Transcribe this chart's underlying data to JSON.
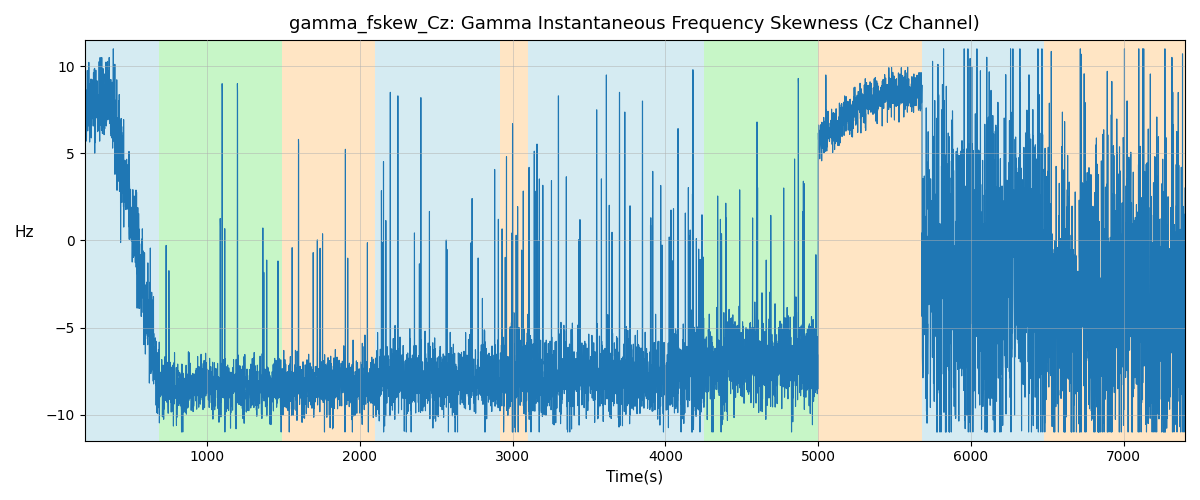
{
  "title": "gamma_fskew_Cz: Gamma Instantaneous Frequency Skewness (Cz Channel)",
  "xlabel": "Time(s)",
  "ylabel": "Hz",
  "xlim": [
    200,
    7400
  ],
  "ylim": [
    -11.5,
    11.5
  ],
  "yticks": [
    -10,
    -5,
    0,
    5,
    10
  ],
  "xticks": [
    1000,
    2000,
    3000,
    4000,
    5000,
    6000,
    7000
  ],
  "line_color": "#1f77b4",
  "line_width": 0.8,
  "bg_color": "#ffffff",
  "grid_color": "#b0b0b0",
  "bands": [
    {
      "xmin": 200,
      "xmax": 690,
      "color": "#add8e6",
      "alpha": 0.5
    },
    {
      "xmin": 690,
      "xmax": 1490,
      "color": "#90ee90",
      "alpha": 0.5
    },
    {
      "xmin": 1490,
      "xmax": 2100,
      "color": "#ffd59e",
      "alpha": 0.6
    },
    {
      "xmin": 2100,
      "xmax": 2820,
      "color": "#add8e6",
      "alpha": 0.5
    },
    {
      "xmin": 2820,
      "xmax": 2920,
      "color": "#add8e6",
      "alpha": 0.5
    },
    {
      "xmin": 2920,
      "xmax": 3100,
      "color": "#ffd59e",
      "alpha": 0.6
    },
    {
      "xmin": 3100,
      "xmax": 4150,
      "color": "#add8e6",
      "alpha": 0.5
    },
    {
      "xmin": 4150,
      "xmax": 4250,
      "color": "#add8e6",
      "alpha": 0.5
    },
    {
      "xmin": 4250,
      "xmax": 5000,
      "color": "#90ee90",
      "alpha": 0.5
    },
    {
      "xmin": 5000,
      "xmax": 5680,
      "color": "#ffd59e",
      "alpha": 0.6
    },
    {
      "xmin": 5680,
      "xmax": 6480,
      "color": "#add8e6",
      "alpha": 0.5
    },
    {
      "xmin": 6480,
      "xmax": 7400,
      "color": "#ffd59e",
      "alpha": 0.6
    }
  ],
  "seed": 42
}
